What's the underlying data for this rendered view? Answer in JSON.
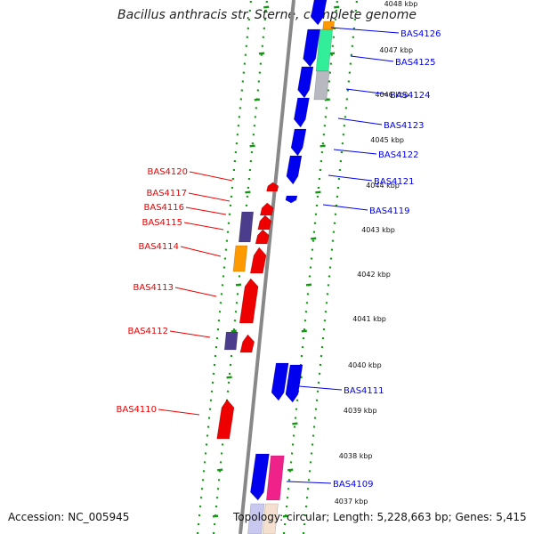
{
  "title": "Bacillus anthracis str. Sterne, complete genome",
  "accession": "Accession: NC_005945",
  "stats": "Topology: circular; Length: 5,228,663 bp; Genes: 5,415",
  "colors": {
    "backbone": "#888888",
    "tick": "#119911",
    "forward": "#0000ee",
    "reverse": "#ee0000",
    "purple": "#4b3c8c",
    "orange": "#ff9900",
    "teal": "#33ee99",
    "pink": "#ee2288",
    "gray_gene": "#b8b8c0",
    "lavender": "#c8c8f0"
  },
  "ruler": [
    "4048 kbp",
    "4047 kbp",
    "4046 kbp",
    "4045 kbp",
    "4044 kbp",
    "4043 kbp",
    "4042 kbp",
    "4041 kbp",
    "4040 kbp",
    "4039 kbp",
    "4038 kbp",
    "4037 kbp"
  ],
  "forward_labels": [
    "BAS4126",
    "BAS4125",
    "BAS4124",
    "BAS4123",
    "BAS4122",
    "BAS4121",
    "BAS4119",
    "BAS4111",
    "BAS4109"
  ],
  "reverse_labels": [
    "BAS4120",
    "BAS4117",
    "BAS4116",
    "BAS4115",
    "BAS4114",
    "BAS4113",
    "BAS4112",
    "BAS4110"
  ]
}
